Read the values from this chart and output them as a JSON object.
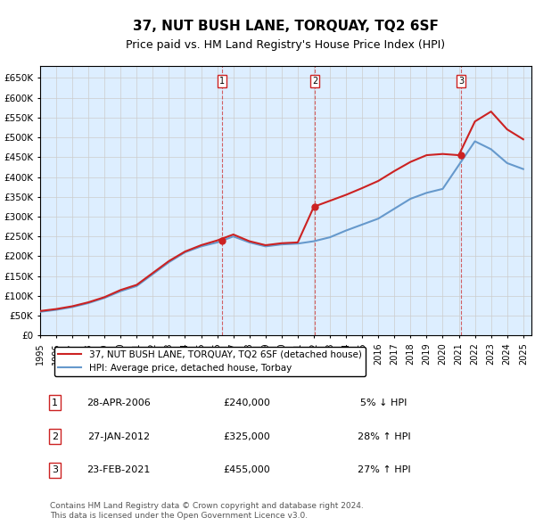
{
  "title": "37, NUT BUSH LANE, TORQUAY, TQ2 6SF",
  "subtitle": "Price paid vs. HM Land Registry's House Price Index (HPI)",
  "ylabel_ticks": [
    "£0",
    "£50K",
    "£100K",
    "£150K",
    "£200K",
    "£250K",
    "£300K",
    "£350K",
    "£400K",
    "£450K",
    "£500K",
    "£550K",
    "£600K",
    "£650K"
  ],
  "ytick_values": [
    0,
    50000,
    100000,
    150000,
    200000,
    250000,
    300000,
    350000,
    400000,
    450000,
    500000,
    550000,
    600000,
    650000
  ],
  "ylim": [
    0,
    680000
  ],
  "xlim_start": 1995.0,
  "xlim_end": 2025.5,
  "hpi_color": "#6699cc",
  "price_color": "#cc2222",
  "sale_marker_color": "#cc2222",
  "grid_color": "#cccccc",
  "bg_color": "#ddeeff",
  "plot_bg": "#ddeeff",
  "legend_entries": [
    "37, NUT BUSH LANE, TORQUAY, TQ2 6SF (detached house)",
    "HPI: Average price, detached house, Torbay"
  ],
  "sales": [
    {
      "num": 1,
      "date": "28-APR-2006",
      "price": 240000,
      "pct": "5%",
      "dir": "↓",
      "year": 2006.32
    },
    {
      "num": 2,
      "date": "27-JAN-2012",
      "price": 325000,
      "pct": "28%",
      "dir": "↑",
      "year": 2012.07
    },
    {
      "num": 3,
      "date": "23-FEB-2021",
      "price": 455000,
      "pct": "27%",
      "dir": "↑",
      "year": 2021.14
    }
  ],
  "footer": "Contains HM Land Registry data © Crown copyright and database right 2024.\nThis data is licensed under the Open Government Licence v3.0.",
  "hpi_years": [
    1995,
    1996,
    1997,
    1998,
    1999,
    2000,
    2001,
    2002,
    2003,
    2004,
    2005,
    2006,
    2007,
    2008,
    2009,
    2010,
    2011,
    2012,
    2013,
    2014,
    2015,
    2016,
    2017,
    2018,
    2019,
    2020,
    2021,
    2022,
    2023,
    2024,
    2025
  ],
  "hpi_values": [
    60000,
    65000,
    72000,
    82000,
    95000,
    112000,
    125000,
    155000,
    185000,
    210000,
    225000,
    235000,
    250000,
    235000,
    225000,
    230000,
    232000,
    238000,
    248000,
    265000,
    280000,
    295000,
    320000,
    345000,
    360000,
    370000,
    430000,
    490000,
    470000,
    435000,
    420000
  ],
  "price_years": [
    1995,
    1996,
    1997,
    1998,
    1999,
    2000,
    2001,
    2002,
    2003,
    2004,
    2005,
    2006,
    2007,
    2008,
    2009,
    2010,
    2011,
    2012,
    2013,
    2014,
    2015,
    2016,
    2017,
    2018,
    2019,
    2020,
    2021,
    2022,
    2023,
    2024,
    2025
  ],
  "price_values": [
    62000,
    67000,
    74000,
    84000,
    97000,
    115000,
    128000,
    158000,
    188000,
    212000,
    228000,
    240000,
    255000,
    238000,
    228000,
    233000,
    235000,
    325000,
    340000,
    355000,
    372000,
    390000,
    415000,
    438000,
    455000,
    458000,
    455000,
    540000,
    565000,
    520000,
    495000
  ]
}
